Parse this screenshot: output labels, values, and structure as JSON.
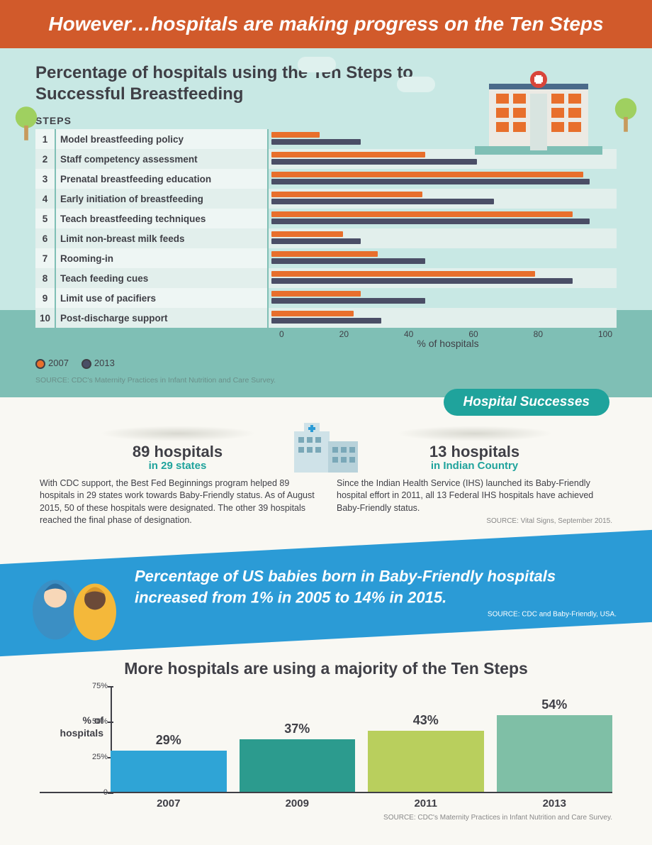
{
  "header": "However…hospitals are making progress on the Ten Steps",
  "subtitle": "Percentage of hospitals using the Ten Steps to Successful Breastfeeding",
  "steps_label": "STEPS",
  "horiz_chart": {
    "type": "bar",
    "series": [
      {
        "year": "2007",
        "color": "#e86f2c"
      },
      {
        "year": "2013",
        "color": "#4a4e66"
      }
    ],
    "xlim": [
      0,
      100
    ],
    "xticks": [
      0,
      20,
      40,
      60,
      80,
      100
    ],
    "xlabel": "% of hospitals",
    "row_bg_even": "#e2efec",
    "row_bg_odd": "#eef6f4",
    "rows": [
      {
        "n": "1",
        "label": "Model breastfeeding policy",
        "v2007": 14,
        "v2013": 26
      },
      {
        "n": "2",
        "label": "Staff competency assessment",
        "v2007": 45,
        "v2013": 60
      },
      {
        "n": "3",
        "label": "Prenatal breastfeeding education",
        "v2007": 91,
        "v2013": 93
      },
      {
        "n": "4",
        "label": "Early initiation of breastfeeding",
        "v2007": 44,
        "v2013": 65
      },
      {
        "n": "5",
        "label": "Teach breastfeeding techniques",
        "v2007": 88,
        "v2013": 93
      },
      {
        "n": "6",
        "label": "Limit non-breast milk feeds",
        "v2007": 21,
        "v2013": 26
      },
      {
        "n": "7",
        "label": "Rooming-in",
        "v2007": 31,
        "v2013": 45
      },
      {
        "n": "8",
        "label": "Teach feeding cues",
        "v2007": 77,
        "v2013": 88
      },
      {
        "n": "9",
        "label": "Limit use of pacifiers",
        "v2007": 26,
        "v2013": 45
      },
      {
        "n": "10",
        "label": "Post-discharge support",
        "v2007": 24,
        "v2013": 32
      }
    ]
  },
  "source1": "SOURCE: CDC's Maternity Practices in Infant Nutrition and Care Survey.",
  "badge": "Hospital Successes",
  "mid_left": {
    "title": "89 hospitals",
    "sub": "in 29 states",
    "text": "With CDC support, the Best Fed Beginnings program helped 89 hospitals in 29 states work towards Baby-Friendly status. As of August 2015, 50 of these hospitals were designated. The other 39 hospitals reached the final phase of designation."
  },
  "mid_right": {
    "title": "13 hospitals",
    "sub": "in Indian Country",
    "text": "Since the Indian Health Service (IHS) launched its Baby-Friendly hospital effort in 2011, all 13 Federal IHS hospitals have achieved Baby-Friendly status.",
    "source": "SOURCE: Vital Signs, September 2015."
  },
  "blue_band": {
    "text": "Percentage of US babies born in Baby-Friendly hospitals increased from 1% in 2005 to 14% in 2015.",
    "source": "SOURCE: CDC and Baby-Friendly, USA."
  },
  "bottom": {
    "title": "More hospitals are using a majority of the Ten Steps",
    "type": "bar",
    "ylabel": "% of hospitals",
    "ylim": [
      0,
      75
    ],
    "yticks": [
      0,
      25,
      50,
      75
    ],
    "bars": [
      {
        "year": "2007",
        "value": 29,
        "label": "29%",
        "color": "#2fa4d6"
      },
      {
        "year": "2009",
        "value": 37,
        "label": "37%",
        "color": "#2c9b8e"
      },
      {
        "year": "2011",
        "value": 43,
        "label": "43%",
        "color": "#b9cf5d"
      },
      {
        "year": "2013",
        "value": 54,
        "label": "54%",
        "color": "#7fbfa6"
      }
    ],
    "source": "SOURCE: CDC's Maternity Practices in Infant Nutrition and Care Survey."
  }
}
